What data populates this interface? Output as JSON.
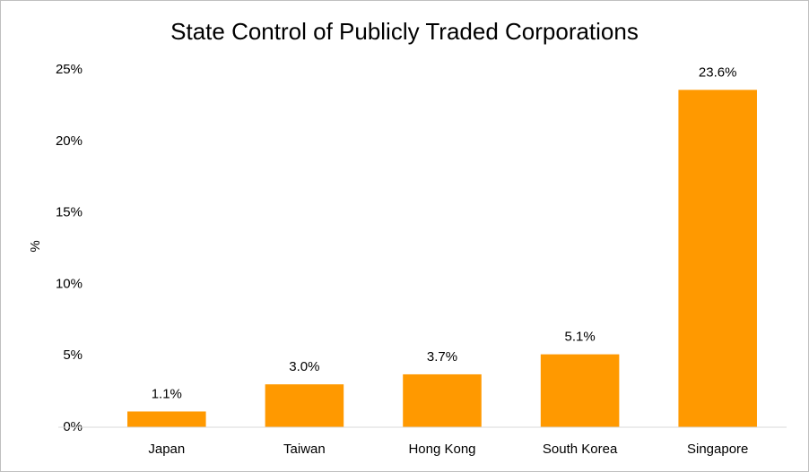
{
  "chart_data": {
    "type": "bar",
    "title": "State Control of Publicly Traded Corporations",
    "ylabel": "%",
    "categories": [
      "Japan",
      "Taiwan",
      "Hong Kong",
      "South Korea",
      "Singapore"
    ],
    "values": [
      1.1,
      3.0,
      3.7,
      5.1,
      23.6
    ],
    "value_labels": [
      "1.1%",
      "3.0%",
      "3.7%",
      "5.1%",
      "23.6%"
    ],
    "color": "#ff9900",
    "ylim": [
      0,
      25
    ],
    "yticks": [
      {
        "value": 0,
        "label": "0%"
      },
      {
        "value": 5,
        "label": "5%"
      },
      {
        "value": 10,
        "label": "10%"
      },
      {
        "value": 15,
        "label": "15%"
      },
      {
        "value": 20,
        "label": "20%"
      },
      {
        "value": 25,
        "label": "25%"
      }
    ],
    "grid": false
  }
}
